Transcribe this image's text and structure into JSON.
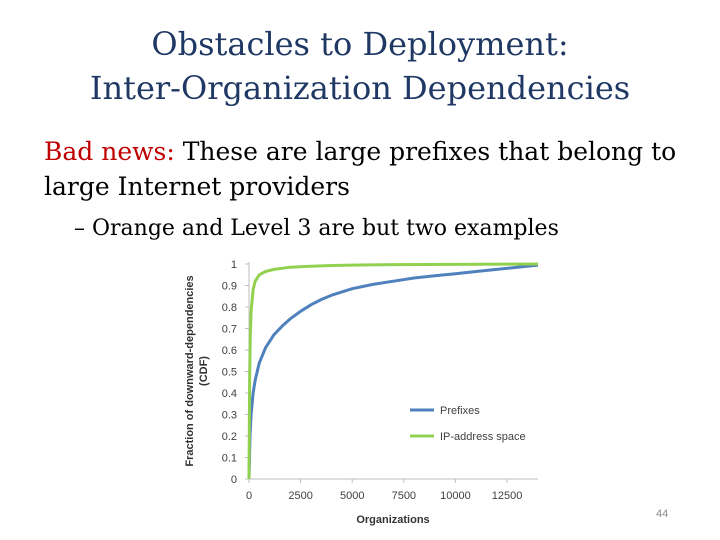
{
  "slide": {
    "title_line1": "Obstacles to Deployment:",
    "title_line2": "Inter-Organization Dependencies",
    "bullet_lead": "Bad news:",
    "bullet_rest": " These are large prefixes that belong to large Internet providers",
    "sub_bullet": "– Orange and Level 3 are but two examples",
    "page_number": "44"
  },
  "chart_data": {
    "type": "line",
    "xlabel": "Organizations",
    "ylabel_line1": "Fraction of downward-dependencies",
    "ylabel_line2": "(CDF)",
    "xlim": [
      0,
      14000
    ],
    "ylim": [
      0,
      1
    ],
    "xticks": [
      0,
      2500,
      5000,
      7500,
      10000,
      12500
    ],
    "yticks": [
      0,
      0.1,
      0.2,
      0.3,
      0.4,
      0.5,
      0.6,
      0.7,
      0.8,
      0.9,
      1
    ],
    "legend_position": "lower-right",
    "grid": false,
    "series": [
      {
        "name": "Prefixes",
        "color": "#4f81bd",
        "x": [
          0,
          50,
          100,
          200,
          300,
          500,
          800,
          1200,
          1600,
          2000,
          2500,
          3000,
          3500,
          4000,
          5000,
          6000,
          7000,
          8000,
          9000,
          10000,
          11000,
          12000,
          13000,
          14000
        ],
        "y": [
          0,
          0.2,
          0.3,
          0.4,
          0.46,
          0.54,
          0.61,
          0.67,
          0.71,
          0.745,
          0.78,
          0.81,
          0.835,
          0.855,
          0.885,
          0.905,
          0.92,
          0.935,
          0.945,
          0.955,
          0.965,
          0.975,
          0.985,
          0.995
        ]
      },
      {
        "name": "IP-address space",
        "color": "#92d050",
        "x": [
          0,
          30,
          60,
          100,
          200,
          300,
          500,
          800,
          1200,
          1600,
          2000,
          3000,
          4000,
          5000,
          7000,
          10000,
          14000
        ],
        "y": [
          0,
          0.45,
          0.65,
          0.78,
          0.88,
          0.92,
          0.95,
          0.965,
          0.975,
          0.98,
          0.985,
          0.99,
          0.993,
          0.995,
          0.997,
          0.998,
          1.0
        ]
      }
    ]
  }
}
